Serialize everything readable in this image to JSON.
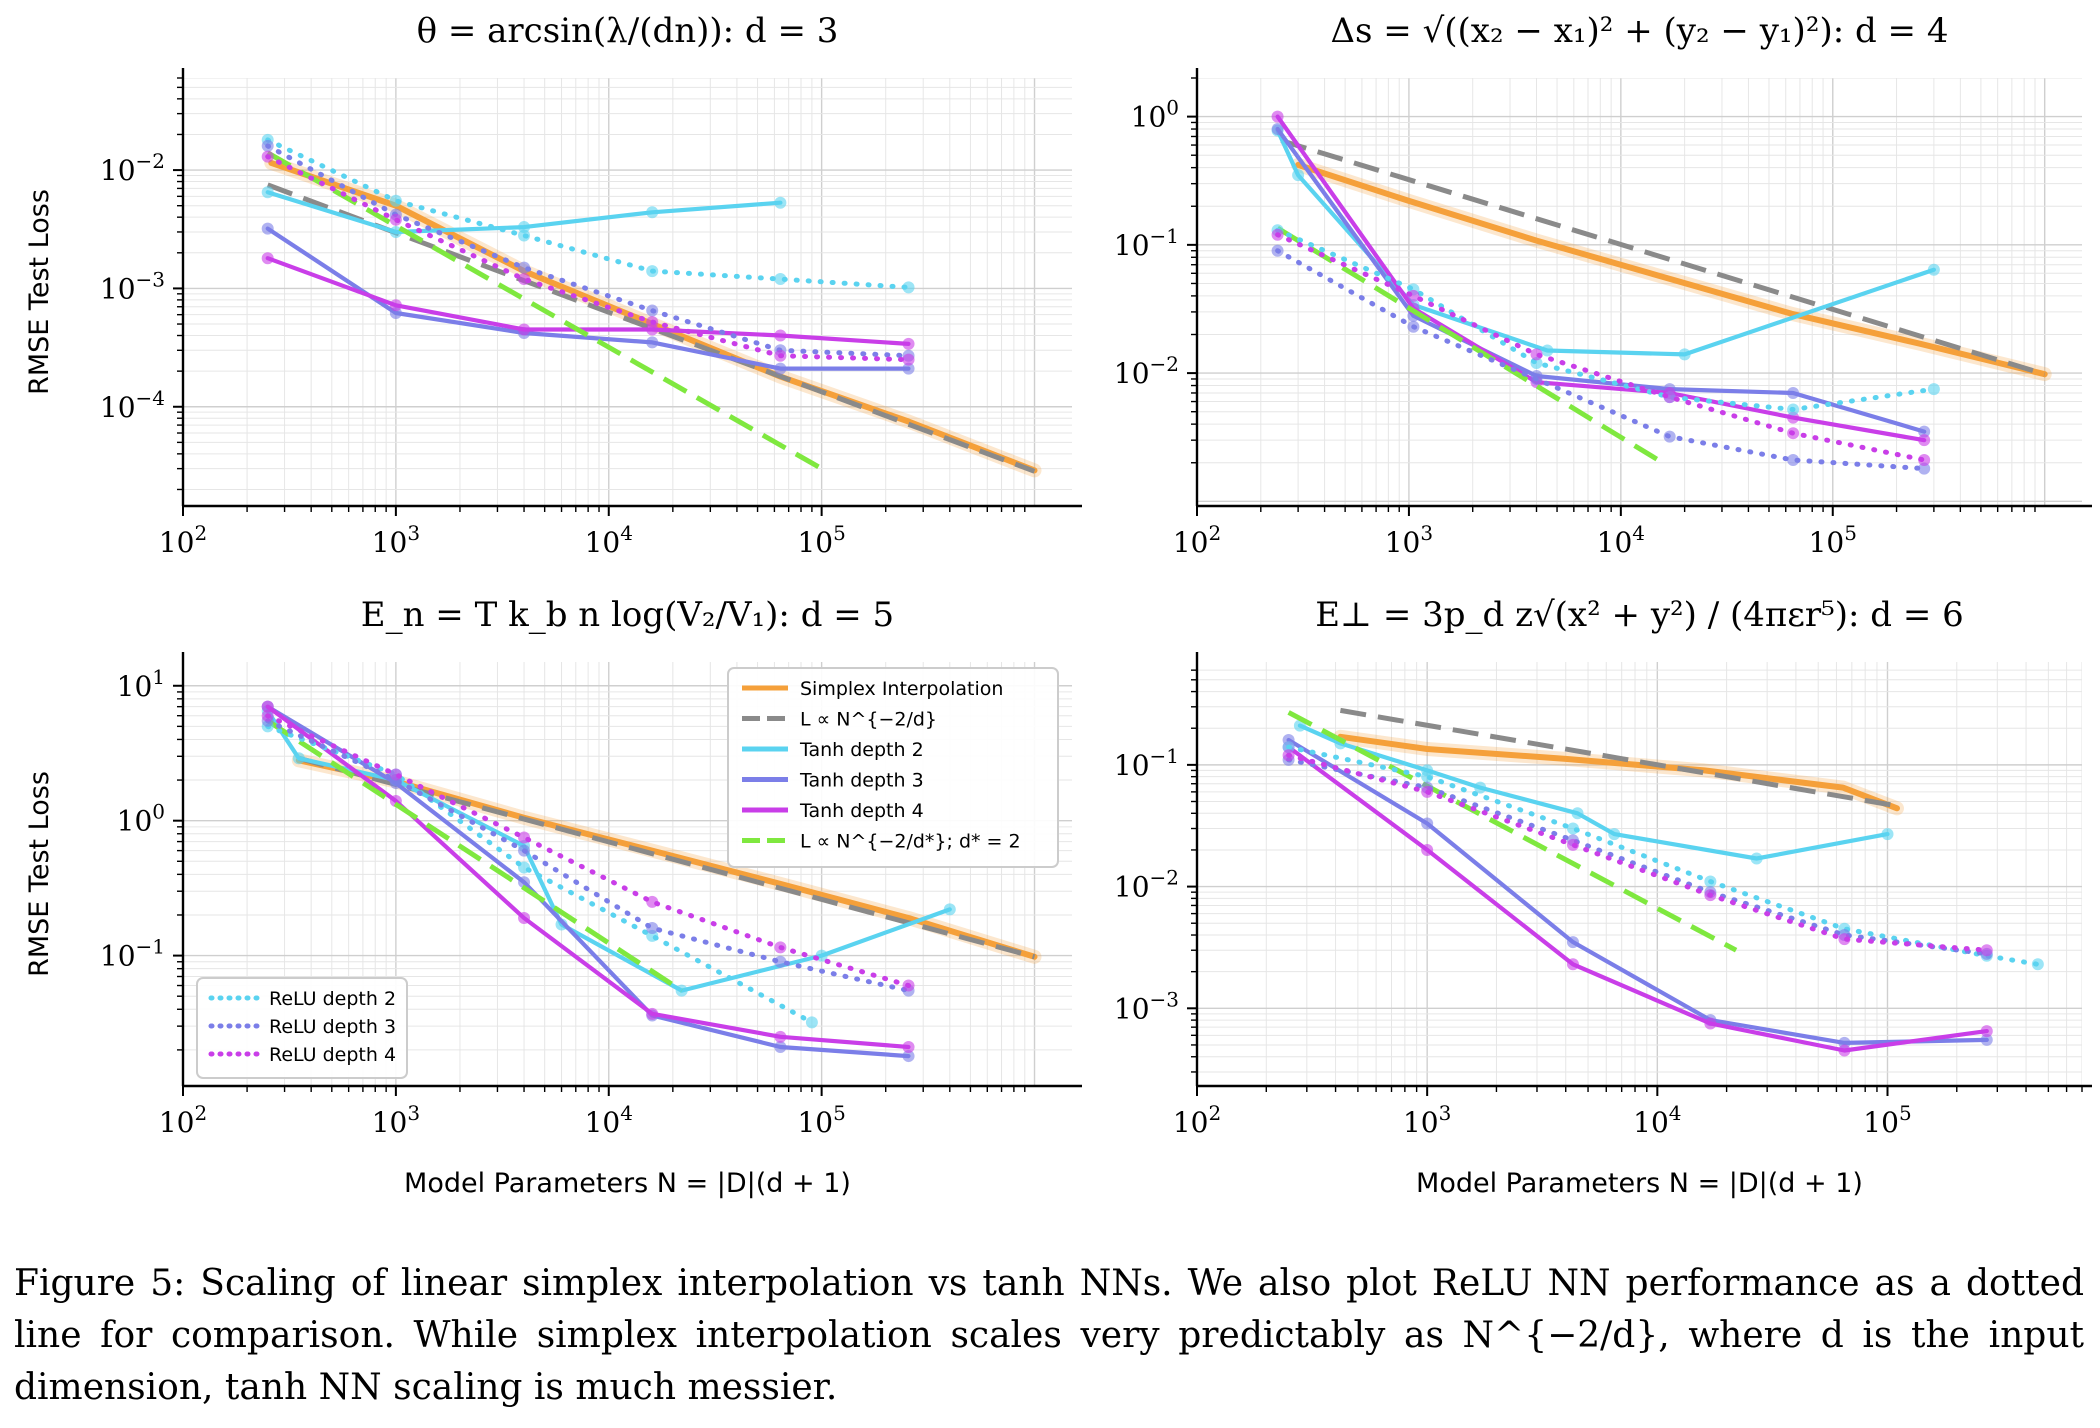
{
  "caption": {
    "figure_label": "Figure 5:",
    "text": "Scaling of linear simplex interpolation vs tanh NNs. We also plot ReLU NN performance as a dotted line for comparison. While simplex interpolation scales very predictably as N^{−2/d}, where d is the input dimension, tanh NN scaling is much messier."
  },
  "legend_main": [
    {
      "key": "simplex",
      "label": "Simplex Interpolation",
      "color": "#f5a03a",
      "style": "solid"
    },
    {
      "key": "theory",
      "label": "L ∝ N^{−2/d}",
      "color": "#8a8a8a",
      "style": "dash"
    },
    {
      "key": "tanh2",
      "label": "Tanh depth 2",
      "color": "#5ad3f0",
      "style": "solid"
    },
    {
      "key": "tanh3",
      "label": "Tanh depth 3",
      "color": "#7b7ee8",
      "style": "solid"
    },
    {
      "key": "tanh4",
      "label": "Tanh depth 4",
      "color": "#c93ee8",
      "style": "solid"
    },
    {
      "key": "fit",
      "label": "L ∝ N^{−2/d*}; d* = 2",
      "color": "#7fe83f",
      "style": "dash"
    }
  ],
  "legend_relu": [
    {
      "key": "relu2",
      "label": "ReLU depth 2",
      "color": "#5ad3f0",
      "style": "dot"
    },
    {
      "key": "relu3",
      "label": "ReLU depth 3",
      "color": "#7b7ee8",
      "style": "dot"
    },
    {
      "key": "relu4",
      "label": "ReLU depth 4",
      "color": "#c93ee8",
      "style": "dot"
    }
  ],
  "chart_data": [
    {
      "type": "line",
      "title": "θ = arcsin(λ/(dn)): d = 3",
      "xlabel": "",
      "ylabel": "RMSE Test Loss",
      "xscale": "log",
      "yscale": "log",
      "xlim": [
        100,
        1500000
      ],
      "ylim": [
        1.45e-05,
        0.06
      ],
      "xticks": [
        "10^2",
        "10^3",
        "10^4",
        "10^5"
      ],
      "yticks": [
        "10^-4",
        "10^-3",
        "10^-2"
      ],
      "grid": true,
      "series": [
        {
          "name": "Simplex Interpolation",
          "x": [
            260,
            1000,
            4000,
            16000,
            64000,
            256000,
            1000000
          ],
          "y": [
            0.0115,
            0.005,
            0.0014,
            0.0005,
            0.00018,
            7.5e-05,
            2.9e-05
          ]
        },
        {
          "name": "L ∝ N^{−2/d}",
          "x": [
            250,
            1000000
          ],
          "y": [
            0.0075,
            2.85e-05
          ]
        },
        {
          "name": "Tanh depth 2",
          "x": [
            250,
            1000,
            4000,
            16000,
            64000
          ],
          "y": [
            0.0065,
            0.003,
            0.0033,
            0.0044,
            0.0053
          ]
        },
        {
          "name": "Tanh depth 3",
          "x": [
            250,
            1000,
            4000,
            16000,
            64000,
            256000
          ],
          "y": [
            0.0032,
            0.00062,
            0.00042,
            0.00035,
            0.00021,
            0.00021
          ]
        },
        {
          "name": "Tanh depth 4",
          "x": [
            250,
            1000,
            4000,
            16000,
            64000,
            256000
          ],
          "y": [
            0.0018,
            0.00072,
            0.00045,
            0.00045,
            0.0004,
            0.00034
          ]
        },
        {
          "name": "L ∝ N^{−2/d*}; d* = 2",
          "x": [
            250,
            100000
          ],
          "y": [
            0.014,
            3e-05
          ]
        },
        {
          "name": "ReLU depth 2",
          "x": [
            250,
            1000,
            4000,
            16000,
            64000,
            256000
          ],
          "y": [
            0.018,
            0.0055,
            0.0028,
            0.0014,
            0.0012,
            0.00102
          ]
        },
        {
          "name": "ReLU depth 3",
          "x": [
            250,
            1000,
            4000,
            16000,
            64000,
            256000
          ],
          "y": [
            0.016,
            0.0042,
            0.0015,
            0.00065,
            0.0003,
            0.00027
          ]
        },
        {
          "name": "ReLU depth 4",
          "x": [
            250,
            1000,
            4000,
            16000,
            64000,
            256000
          ],
          "y": [
            0.013,
            0.0038,
            0.0012,
            0.00052,
            0.00027,
            0.00025
          ]
        }
      ]
    },
    {
      "type": "line",
      "title": "Δs = √((x₂ − x₁)² + (y₂ − y₁)²): d = 4",
      "xlabel": "",
      "ylabel": "",
      "xscale": "log",
      "yscale": "log",
      "xlim": [
        100,
        1500000
      ],
      "ylim": [
        0.00092,
        2.0
      ],
      "xticks": [
        "10^2",
        "10^3",
        "10^4",
        "10^5"
      ],
      "yticks": [
        "10^-2",
        "10^-1",
        "10^0"
      ],
      "grid": true,
      "series": [
        {
          "name": "Simplex Interpolation",
          "x": [
            300,
            1000,
            4000,
            16000,
            64000,
            256000,
            1000000
          ],
          "y": [
            0.42,
            0.22,
            0.108,
            0.056,
            0.029,
            0.017,
            0.0098
          ]
        },
        {
          "name": "L ∝ N^{−2/d}",
          "x": [
            250,
            1000000
          ],
          "y": [
            0.65,
            0.0098
          ]
        },
        {
          "name": "Tanh depth 2",
          "x": [
            240,
            300,
            1050,
            4500,
            20000,
            300000
          ],
          "y": [
            0.78,
            0.35,
            0.034,
            0.015,
            0.014,
            0.064
          ]
        },
        {
          "name": "Tanh depth 3",
          "x": [
            240,
            1050,
            4000,
            17000,
            65000,
            270000
          ],
          "y": [
            0.8,
            0.028,
            0.0095,
            0.0075,
            0.007,
            0.0035
          ]
        },
        {
          "name": "Tanh depth 4",
          "x": [
            240,
            1050,
            4000,
            17000,
            65000,
            270000
          ],
          "y": [
            1.0,
            0.032,
            0.0085,
            0.007,
            0.0045,
            0.003
          ]
        },
        {
          "name": "L ∝ N^{−2/d*}; d* = 2",
          "x": [
            240,
            15000
          ],
          "y": [
            0.135,
            0.0021
          ]
        },
        {
          "name": "ReLU depth 2",
          "x": [
            240,
            1050,
            4000,
            17000,
            65000,
            300000
          ],
          "y": [
            0.13,
            0.045,
            0.012,
            0.0065,
            0.0052,
            0.0075
          ]
        },
        {
          "name": "ReLU depth 3",
          "x": [
            240,
            1050,
            4000,
            17000,
            65000,
            270000
          ],
          "y": [
            0.09,
            0.023,
            0.009,
            0.0032,
            0.0021,
            0.0018
          ]
        },
        {
          "name": "ReLU depth 4",
          "x": [
            240,
            1050,
            4000,
            17000,
            65000,
            270000
          ],
          "y": [
            0.12,
            0.04,
            0.014,
            0.0065,
            0.0034,
            0.0021
          ]
        }
      ]
    },
    {
      "type": "line",
      "title": "E_n = T k_b n log(V₂/V₁): d = 5",
      "xlabel": "Model Parameters N = |D|(d + 1)",
      "ylabel": "RMSE Test Loss",
      "xscale": "log",
      "yscale": "log",
      "xlim": [
        100,
        1500000
      ],
      "ylim": [
        0.0108,
        15
      ],
      "xticks": [
        "10^2",
        "10^3",
        "10^4",
        "10^5"
      ],
      "yticks": [
        "10^-1",
        "10^0",
        "10^1"
      ],
      "grid": true,
      "series": [
        {
          "name": "Simplex Interpolation",
          "x": [
            350,
            1000,
            4000,
            16000,
            64000,
            256000,
            1000000
          ],
          "y": [
            2.8,
            1.95,
            1.05,
            0.6,
            0.34,
            0.19,
            0.098
          ]
        },
        {
          "name": "L ∝ N^{−2/d}",
          "x": [
            350,
            1000000
          ],
          "y": [
            2.9,
            0.098
          ]
        },
        {
          "name": "Tanh depth 2",
          "x": [
            250,
            350,
            1000,
            4000,
            6000,
            22000,
            100000,
            400000
          ],
          "y": [
            6.5,
            2.9,
            2.0,
            0.65,
            0.17,
            0.055,
            0.1,
            0.22
          ]
        },
        {
          "name": "Tanh depth 3",
          "x": [
            250,
            1000,
            4000,
            16000,
            64000,
            256000
          ],
          "y": [
            7.0,
            1.9,
            0.35,
            0.036,
            0.021,
            0.018
          ]
        },
        {
          "name": "Tanh depth 4",
          "x": [
            250,
            1000,
            4000,
            16000,
            64000,
            256000
          ],
          "y": [
            7.0,
            1.4,
            0.19,
            0.037,
            0.025,
            0.021
          ]
        },
        {
          "name": "L ∝ N^{−2/d*}; d* = 2",
          "x": [
            250,
            22000
          ],
          "y": [
            5.5,
            0.055
          ]
        },
        {
          "name": "ReLU depth 2",
          "x": [
            250,
            1000,
            4000,
            16000,
            90000
          ],
          "y": [
            5.0,
            2.2,
            0.45,
            0.14,
            0.032
          ]
        },
        {
          "name": "ReLU depth 3",
          "x": [
            250,
            1000,
            4000,
            16000,
            64000,
            256000
          ],
          "y": [
            5.5,
            2.0,
            0.6,
            0.16,
            0.09,
            0.055
          ]
        },
        {
          "name": "ReLU depth 4",
          "x": [
            250,
            1000,
            4000,
            16000,
            64000,
            256000
          ],
          "y": [
            6.0,
            2.2,
            0.75,
            0.25,
            0.115,
            0.06
          ]
        }
      ]
    },
    {
      "type": "line",
      "title": "E⊥ = 3p_d z√(x² + y²) / (4πεr⁵): d = 6",
      "xlabel": "Model Parameters N = |D|(d + 1)",
      "ylabel": "",
      "xscale": "log",
      "yscale": "log",
      "xlim": [
        100,
        700000
      ],
      "ylim": [
        0.00023,
        0.7
      ],
      "xticks": [
        "10^2",
        "10^3",
        "10^4",
        "10^5"
      ],
      "yticks": [
        "10^-3",
        "10^-2",
        "10^-1"
      ],
      "grid": true,
      "series": [
        {
          "name": "Simplex Interpolation",
          "x": [
            420,
            1000,
            4000,
            16000,
            64000,
            110000
          ],
          "y": [
            0.17,
            0.135,
            0.112,
            0.09,
            0.065,
            0.044
          ]
        },
        {
          "name": "L ∝ N^{−2/d}",
          "x": [
            420,
            110000
          ],
          "y": [
            0.28,
            0.046
          ]
        },
        {
          "name": "Tanh depth 2",
          "x": [
            280,
            420,
            1000,
            1700,
            4500,
            6500,
            27000,
            100000
          ],
          "y": [
            0.21,
            0.15,
            0.09,
            0.065,
            0.04,
            0.027,
            0.017,
            0.027
          ]
        },
        {
          "name": "Tanh depth 3",
          "x": [
            250,
            1000,
            4300,
            17000,
            65000,
            270000
          ],
          "y": [
            0.16,
            0.033,
            0.0035,
            0.0008,
            0.00052,
            0.00055
          ]
        },
        {
          "name": "Tanh depth 4",
          "x": [
            250,
            1000,
            4300,
            17000,
            65000,
            270000
          ],
          "y": [
            0.14,
            0.02,
            0.0023,
            0.00075,
            0.00045,
            0.00065
          ]
        },
        {
          "name": "L ∝ N^{−2/d*}; d* = 2",
          "x": [
            250,
            22000
          ],
          "y": [
            0.27,
            0.003
          ]
        },
        {
          "name": "ReLU depth 2",
          "x": [
            250,
            1000,
            4300,
            17000,
            65000,
            270000,
            450000
          ],
          "y": [
            0.14,
            0.08,
            0.03,
            0.011,
            0.0045,
            0.0027,
            0.0023
          ]
        },
        {
          "name": "ReLU depth 3",
          "x": [
            250,
            1000,
            4300,
            17000,
            65000,
            270000
          ],
          "y": [
            0.11,
            0.065,
            0.024,
            0.009,
            0.004,
            0.0028
          ]
        },
        {
          "name": "ReLU depth 4",
          "x": [
            250,
            1000,
            4300,
            17000,
            65000,
            270000
          ],
          "y": [
            0.12,
            0.06,
            0.022,
            0.0085,
            0.0037,
            0.003
          ]
        }
      ]
    }
  ]
}
